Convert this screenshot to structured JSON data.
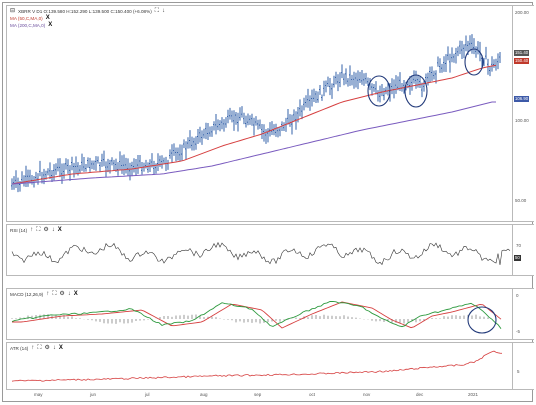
{
  "main": {
    "title": "XBRR V  D1  O:139.580  H:152.290  L:139.500  C:150.400  (+6.08%)",
    "ma1": "MA (50,C,MA,0)",
    "ma2": "MA (200,C,MA,0)",
    "y_ticks": [
      "200.00",
      "100.00",
      "50.00"
    ],
    "price_badges": [
      "151.40",
      "150.40",
      "106.90"
    ],
    "colors": {
      "price": "#1c4fa0",
      "ma50": "#d64040",
      "ma200": "#7a5bbf",
      "highlight": "#223a7a"
    }
  },
  "rsi": {
    "title": "RSI (14)",
    "y_ticks": [
      "70",
      "50"
    ],
    "color": "#333333"
  },
  "macd": {
    "title": "MACD (12,26,9)",
    "y_ticks": [
      "0",
      "-5"
    ],
    "colors": {
      "macd": "#2e9a3f",
      "signal": "#d64040",
      "hist": "#999999"
    }
  },
  "atr": {
    "title": "ATR (14)",
    "y_ticks": [
      "5"
    ],
    "color": "#d64040"
  },
  "x_axis": [
    "may",
    "jun",
    "jul",
    "aug",
    "sep",
    "oct",
    "nov",
    "dec",
    "2021"
  ],
  "icons": [
    "up-arrow-icon",
    "fullscreen-icon",
    "settings-icon",
    "down-arrow-icon",
    "close-icon"
  ]
}
